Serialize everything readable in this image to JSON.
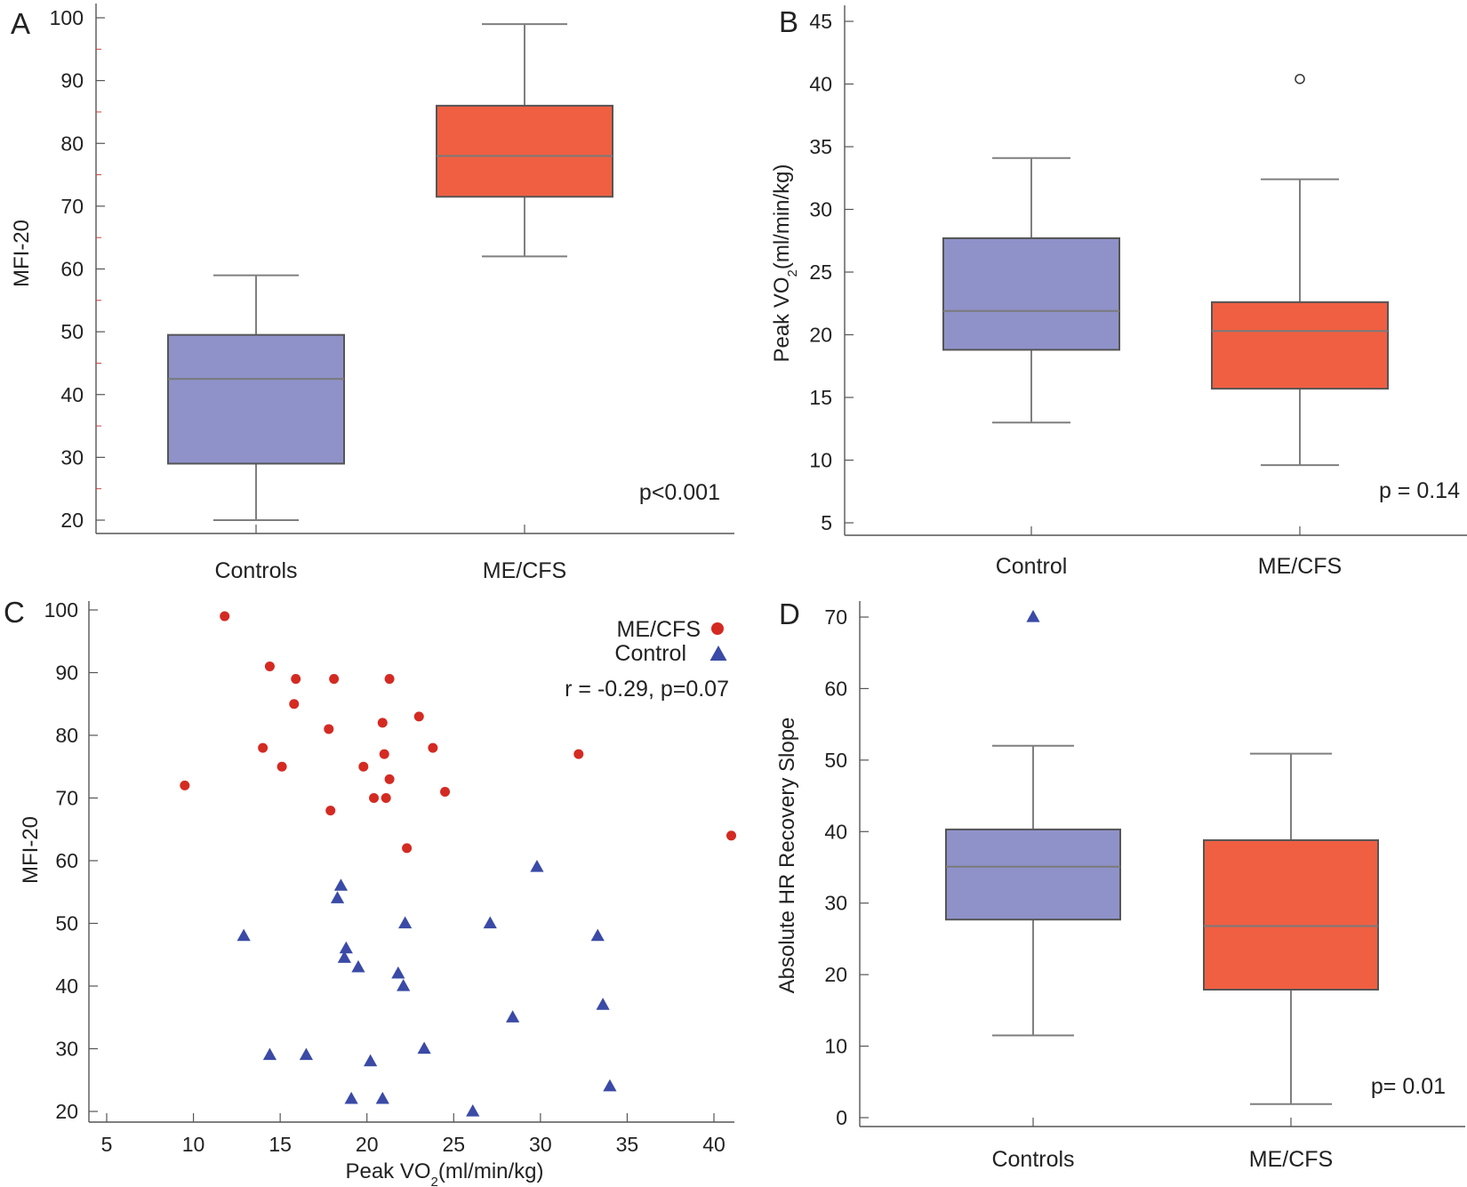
{
  "colors": {
    "control": "#8f92c9",
    "mecfs": "#f05f42",
    "scatter_mecfs": "#d42a22",
    "scatter_control": "#3a4aa6"
  },
  "chart_data": [
    {
      "panel": "A",
      "type": "box",
      "ylabel": "MFI-20",
      "ylim": [
        20,
        100
      ],
      "yticks": [
        20,
        30,
        40,
        50,
        60,
        70,
        80,
        90,
        100
      ],
      "categories": [
        "Controls",
        "ME/CFS"
      ],
      "boxes": [
        {
          "name": "Controls",
          "min": 20,
          "q1": 29,
          "median": 42.5,
          "q3": 49.5,
          "max": 59,
          "outliers": []
        },
        {
          "name": "ME/CFS",
          "min": 62,
          "q1": 71.5,
          "median": 78,
          "q3": 86,
          "max": 99,
          "outliers": []
        }
      ],
      "annotation": "p<0.001"
    },
    {
      "panel": "B",
      "type": "box",
      "ylabel_parts": [
        "Peak VO",
        "2",
        "(ml/min/kg)"
      ],
      "ylim": [
        5,
        45
      ],
      "yticks": [
        5,
        10,
        15,
        20,
        25,
        30,
        35,
        40,
        45
      ],
      "categories": [
        "Control",
        "ME/CFS"
      ],
      "boxes": [
        {
          "name": "Control",
          "min": 13,
          "q1": 18.8,
          "median": 21.9,
          "q3": 27.7,
          "max": 34.1,
          "outliers": []
        },
        {
          "name": "ME/CFS",
          "min": 9.6,
          "q1": 15.7,
          "median": 20.3,
          "q3": 22.6,
          "max": 32.4,
          "outliers": [
            40.4
          ]
        }
      ],
      "annotation": "p = 0.14"
    },
    {
      "panel": "C",
      "type": "scatter",
      "xlabel_parts": [
        "Peak VO",
        "2",
        "(ml/min/kg)"
      ],
      "ylabel": "MFI-20",
      "xlim": [
        5,
        41
      ],
      "ylim": [
        20,
        100
      ],
      "xticks": [
        5,
        10,
        15,
        20,
        25,
        30,
        35,
        40
      ],
      "yticks": [
        20,
        30,
        40,
        50,
        60,
        70,
        80,
        90,
        100
      ],
      "series": [
        {
          "name": "ME/CFS",
          "marker": "circle",
          "points": [
            [
              9.5,
              72
            ],
            [
              11.8,
              99
            ],
            [
              14,
              78
            ],
            [
              14.4,
              91
            ],
            [
              15.1,
              75
            ],
            [
              15.8,
              85
            ],
            [
              15.9,
              89
            ],
            [
              17.8,
              81
            ],
            [
              17.9,
              68
            ],
            [
              18.1,
              89
            ],
            [
              19.8,
              75
            ],
            [
              20.4,
              70
            ],
            [
              20.9,
              82
            ],
            [
              21,
              77
            ],
            [
              21.1,
              70
            ],
            [
              21.3,
              73
            ],
            [
              21.3,
              89
            ],
            [
              22.3,
              62
            ],
            [
              23,
              83
            ],
            [
              23.8,
              78
            ],
            [
              24.5,
              71
            ],
            [
              32.2,
              77
            ],
            [
              41,
              64
            ]
          ]
        },
        {
          "name": "Control",
          "marker": "triangle",
          "points": [
            [
              12.9,
              48
            ],
            [
              14.4,
              29
            ],
            [
              16.5,
              29
            ],
            [
              18.3,
              54
            ],
            [
              18.5,
              56
            ],
            [
              18.7,
              44.5
            ],
            [
              18.8,
              46
            ],
            [
              19.1,
              22
            ],
            [
              19.5,
              43
            ],
            [
              20.2,
              28
            ],
            [
              20.9,
              22
            ],
            [
              21.8,
              42
            ],
            [
              22.1,
              40
            ],
            [
              22.2,
              50
            ],
            [
              23.3,
              30
            ],
            [
              26.1,
              20
            ],
            [
              27.1,
              50
            ],
            [
              28.4,
              35
            ],
            [
              29.8,
              59
            ],
            [
              33.3,
              48
            ],
            [
              33.6,
              37
            ],
            [
              34,
              24
            ]
          ]
        }
      ],
      "legend": [
        {
          "label": "ME/CFS",
          "marker": "circle"
        },
        {
          "label": "Control",
          "marker": "triangle"
        }
      ],
      "annotation": "r = -0.29, p=0.07"
    },
    {
      "panel": "D",
      "type": "box",
      "ylabel": "Absolute HR Recovery Slope",
      "ylim": [
        0,
        70
      ],
      "yticks": [
        0,
        10,
        20,
        30,
        40,
        50,
        60,
        70
      ],
      "categories": [
        "Controls",
        "ME/CFS"
      ],
      "boxes": [
        {
          "name": "Controls",
          "min": 11.5,
          "q1": 27.7,
          "median": 35.1,
          "q3": 40.3,
          "max": 52,
          "outliers": [
            70
          ],
          "outlier_marker": "triangle"
        },
        {
          "name": "ME/CFS",
          "min": 1.9,
          "q1": 17.9,
          "median": 26.8,
          "q3": 38.8,
          "max": 50.9,
          "outliers": []
        }
      ],
      "annotation": "p= 0.01"
    }
  ]
}
